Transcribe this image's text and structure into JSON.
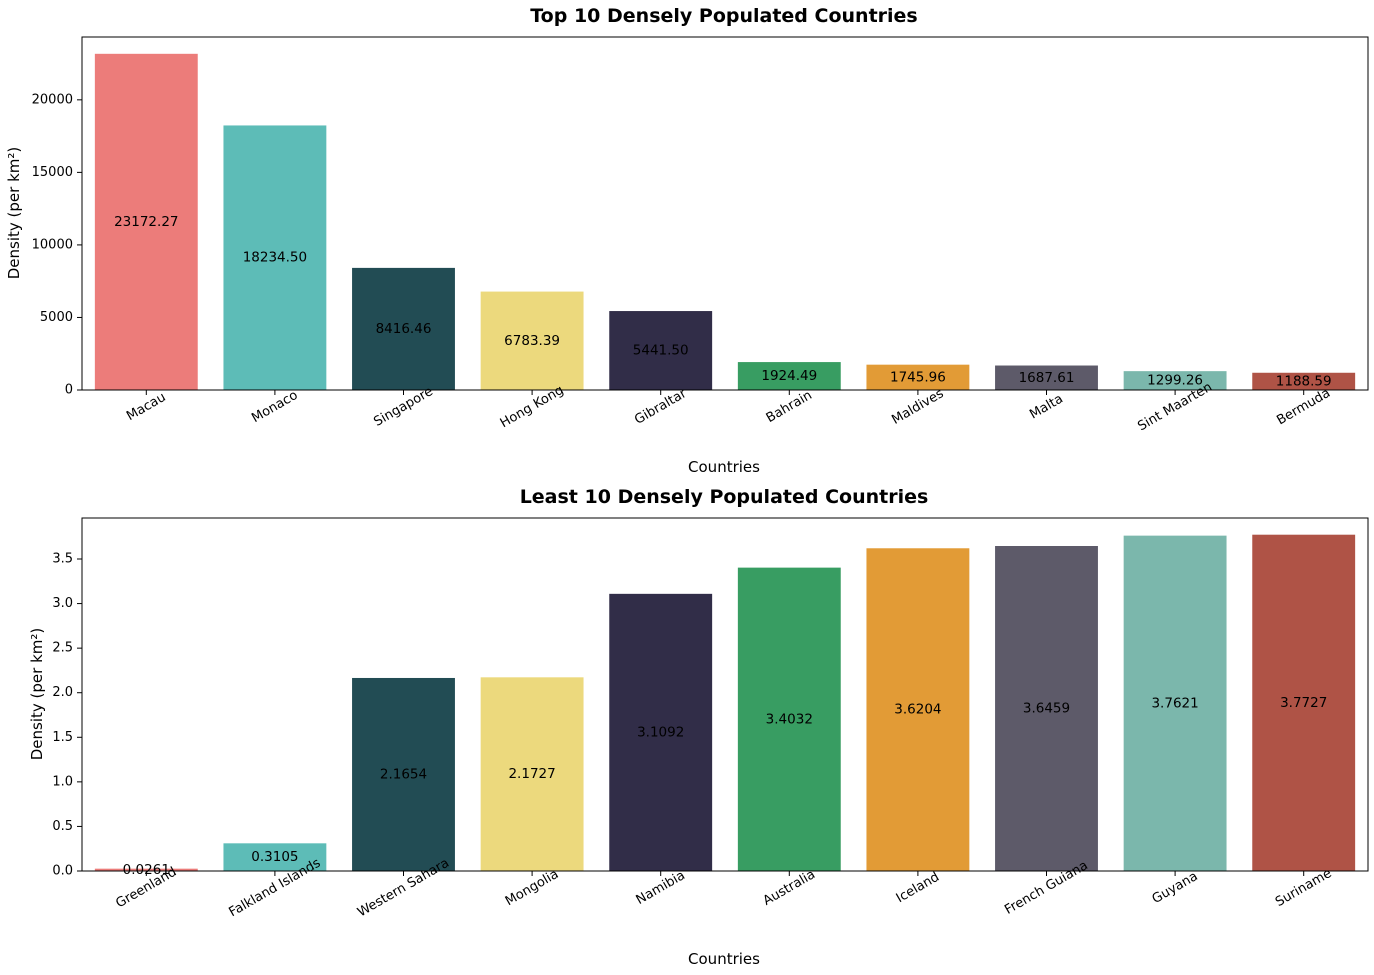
{
  "chart_data": [
    {
      "type": "bar",
      "title": "Top 10 Densely Populated Countries",
      "xlabel": "Countries",
      "ylabel": "Density (per km²)",
      "categories": [
        "Macau",
        "Monaco",
        "Singapore",
        "Hong Kong",
        "Gibraltar",
        "Bahrain",
        "Maldives",
        "Malta",
        "Sint Maarten",
        "Bermuda"
      ],
      "values": [
        23172.27,
        18234.5,
        8416.46,
        6783.39,
        5441.5,
        1924.49,
        1745.96,
        1687.61,
        1299.26,
        1188.59
      ],
      "value_labels": [
        "23172.27",
        "18234.50",
        "8416.46",
        "6783.39",
        "5441.50",
        "1924.49",
        "1745.96",
        "1687.61",
        "1299.26",
        "1188.59"
      ],
      "yticks": [
        0,
        5000,
        10000,
        15000,
        20000
      ],
      "ylim": [
        0,
        24330.88
      ],
      "grid": false,
      "colors": [
        "#ec7c7a",
        "#5dbcb7",
        "#224c54",
        "#ecd97d",
        "#312d48",
        "#389d62",
        "#e29b36",
        "#5d5a69",
        "#7bb7ac",
        "#af5346"
      ]
    },
    {
      "type": "bar",
      "title": "Least 10 Densely Populated Countries",
      "xlabel": "Countries",
      "ylabel": "Density (per km²)",
      "categories": [
        "Greenland",
        "Falkland Islands",
        "Western Sahara",
        "Mongolia",
        "Namibia",
        "Australia",
        "Iceland",
        "French Guiana",
        "Guyana",
        "Suriname"
      ],
      "values": [
        0.0261,
        0.3105,
        2.1654,
        2.1727,
        3.1092,
        3.4032,
        3.6204,
        3.6459,
        3.7621,
        3.7727
      ],
      "value_labels": [
        "0.0261",
        "0.3105",
        "2.1654",
        "2.1727",
        "3.1092",
        "3.4032",
        "3.6204",
        "3.6459",
        "3.7621",
        "3.7727"
      ],
      "yticks": [
        0.0,
        0.5,
        1.0,
        1.5,
        2.0,
        2.5,
        3.0,
        3.5
      ],
      "ytick_labels": [
        "0.0",
        "0.5",
        "1.0",
        "1.5",
        "2.0",
        "2.5",
        "3.0",
        "3.5"
      ],
      "ylim": [
        0,
        3.96
      ],
      "grid": false,
      "colors": [
        "#ec7c7a",
        "#5dbcb7",
        "#224c54",
        "#ecd97d",
        "#312d48",
        "#389d62",
        "#e29b36",
        "#5d5a69",
        "#7bb7ac",
        "#af5346"
      ]
    }
  ]
}
